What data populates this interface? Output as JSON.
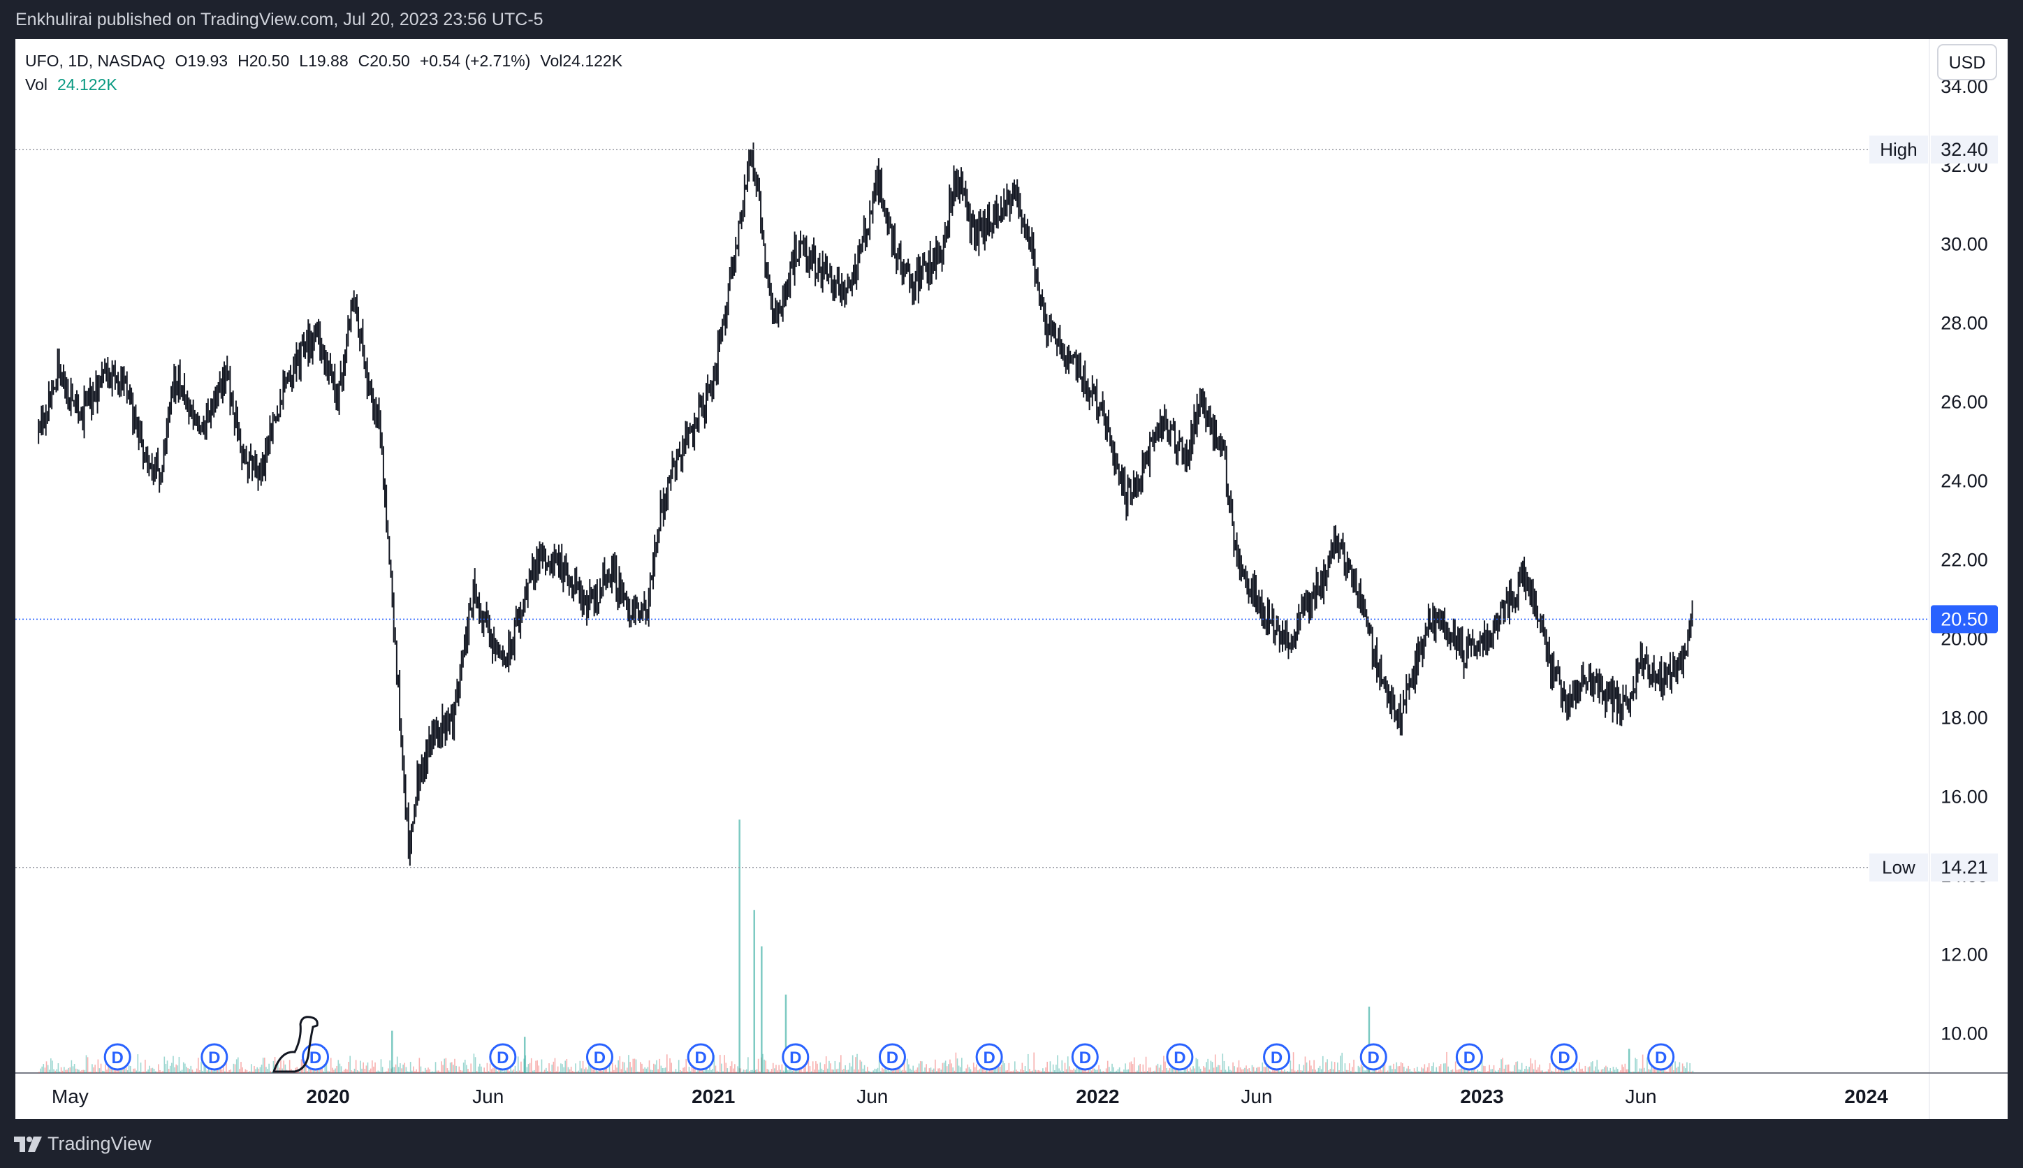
{
  "publish_info": "Enkhulirai published on TradingView.com, Jul 20, 2023 23:56 UTC-5",
  "legend": {
    "symbol": "UFO, 1D, NASDAQ",
    "open": "O19.93",
    "high": "H20.50",
    "low": "L19.88",
    "close": "C20.50",
    "change": "+0.54 (+2.71%)",
    "volume": "Vol24.122K",
    "vol_label": "Vol",
    "vol_value": "24.122K"
  },
  "currency": "USD",
  "brand": "TradingView",
  "colors": {
    "candle": "#131722",
    "accent": "#2962ff",
    "vol_up": "#26a69a",
    "vol_down": "#ef5350",
    "dividend": "#2962ff"
  },
  "chart_data": {
    "type": "candlestick",
    "interval": "1D",
    "ylim": [
      9.0,
      35.2
    ],
    "y_ticks": [
      "34.00",
      "32.00",
      "30.00",
      "28.00",
      "26.00",
      "24.00",
      "22.00",
      "20.00",
      "18.00",
      "16.00",
      "14.00",
      "12.00",
      "10.00"
    ],
    "x_ticks": [
      {
        "date": "2019-05-01",
        "label": "May",
        "bold": false
      },
      {
        "date": "2020-01-01",
        "label": "2020",
        "bold": true
      },
      {
        "date": "2020-06-01",
        "label": "Jun",
        "bold": false
      },
      {
        "date": "2021-01-01",
        "label": "2021",
        "bold": true
      },
      {
        "date": "2021-06-01",
        "label": "Jun",
        "bold": false
      },
      {
        "date": "2022-01-01",
        "label": "2022",
        "bold": true
      },
      {
        "date": "2022-06-01",
        "label": "Jun",
        "bold": false
      },
      {
        "date": "2023-01-01",
        "label": "2023",
        "bold": true
      },
      {
        "date": "2023-06-01",
        "label": "Jun",
        "bold": false
      },
      {
        "date": "2024-01-01",
        "label": "2024",
        "bold": true
      }
    ],
    "x_range": [
      "2019-03-10",
      "2024-03-01"
    ],
    "high_marker": {
      "label": "High",
      "value": 32.4
    },
    "low_marker": {
      "label": "Low",
      "value": 14.21
    },
    "last_price": {
      "value": 20.5,
      "label": "20.50"
    },
    "close_path": [
      [
        "2019-04-01",
        25.1
      ],
      [
        "2019-04-20",
        26.8
      ],
      [
        "2019-05-10",
        25.6
      ],
      [
        "2019-06-01",
        26.6
      ],
      [
        "2019-06-20",
        26.8
      ],
      [
        "2019-07-10",
        24.6
      ],
      [
        "2019-07-25",
        24.2
      ],
      [
        "2019-08-10",
        26.7
      ],
      [
        "2019-09-01",
        25.2
      ],
      [
        "2019-09-25",
        26.8
      ],
      [
        "2019-10-15",
        24.4
      ],
      [
        "2019-10-30",
        24.3
      ],
      [
        "2019-11-20",
        26.5
      ],
      [
        "2019-12-20",
        27.8
      ],
      [
        "2020-01-10",
        26.0
      ],
      [
        "2020-01-25",
        28.7
      ],
      [
        "2020-02-10",
        26.2
      ],
      [
        "2020-02-20",
        25.2
      ],
      [
        "2020-02-26",
        23.0
      ],
      [
        "2020-03-05",
        19.8
      ],
      [
        "2020-03-12",
        17.0
      ],
      [
        "2020-03-18",
        14.5
      ],
      [
        "2020-03-25",
        16.3
      ],
      [
        "2020-04-10",
        17.6
      ],
      [
        "2020-04-28",
        18.0
      ],
      [
        "2020-05-10",
        19.8
      ],
      [
        "2020-05-18",
        21.3
      ],
      [
        "2020-06-05",
        19.8
      ],
      [
        "2020-06-20",
        19.5
      ],
      [
        "2020-07-10",
        21.5
      ],
      [
        "2020-07-25",
        22.2
      ],
      [
        "2020-08-15",
        21.5
      ],
      [
        "2020-09-05",
        20.8
      ],
      [
        "2020-09-25",
        21.8
      ],
      [
        "2020-10-15",
        20.7
      ],
      [
        "2020-10-30",
        20.6
      ],
      [
        "2020-11-10",
        23.0
      ],
      [
        "2020-11-25",
        24.5
      ],
      [
        "2020-12-15",
        25.5
      ],
      [
        "2021-01-01",
        26.5
      ],
      [
        "2021-01-10",
        28.0
      ],
      [
        "2021-01-28",
        31.0
      ],
      [
        "2021-02-05",
        32.4
      ],
      [
        "2021-02-12",
        31.2
      ],
      [
        "2021-02-25",
        28.5
      ],
      [
        "2021-03-05",
        28.3
      ],
      [
        "2021-03-20",
        29.8
      ],
      [
        "2021-04-10",
        29.5
      ],
      [
        "2021-05-10",
        28.8
      ],
      [
        "2021-05-28",
        30.5
      ],
      [
        "2021-06-05",
        31.8
      ],
      [
        "2021-06-20",
        30.0
      ],
      [
        "2021-07-10",
        29.0
      ],
      [
        "2021-08-05",
        29.8
      ],
      [
        "2021-08-20",
        31.8
      ],
      [
        "2021-09-05",
        30.2
      ],
      [
        "2021-09-25",
        30.6
      ],
      [
        "2021-10-15",
        31.2
      ],
      [
        "2021-10-28",
        30.3
      ],
      [
        "2021-11-10",
        28.0
      ],
      [
        "2021-11-25",
        27.5
      ],
      [
        "2021-12-10",
        27.0
      ],
      [
        "2021-12-25",
        26.3
      ],
      [
        "2022-01-10",
        25.5
      ],
      [
        "2022-01-28",
        23.5
      ],
      [
        "2022-02-15",
        24.5
      ],
      [
        "2022-03-05",
        25.5
      ],
      [
        "2022-03-25",
        24.5
      ],
      [
        "2022-04-08",
        26.0
      ],
      [
        "2022-04-28",
        25.0
      ],
      [
        "2022-05-12",
        22.3
      ],
      [
        "2022-05-28",
        21.2
      ],
      [
        "2022-06-15",
        20.5
      ],
      [
        "2022-06-30",
        19.8
      ],
      [
        "2022-07-20",
        20.9
      ],
      [
        "2022-08-05",
        21.6
      ],
      [
        "2022-08-16",
        22.6
      ],
      [
        "2022-09-05",
        21.2
      ],
      [
        "2022-09-28",
        19.0
      ],
      [
        "2022-10-12",
        18.0
      ],
      [
        "2022-10-25",
        18.8
      ],
      [
        "2022-11-10",
        20.4
      ],
      [
        "2022-11-25",
        20.5
      ],
      [
        "2022-12-15",
        19.6
      ],
      [
        "2023-01-05",
        20.0
      ],
      [
        "2023-01-25",
        20.9
      ],
      [
        "2023-02-10",
        21.6
      ],
      [
        "2023-02-25",
        20.6
      ],
      [
        "2023-03-10",
        19.0
      ],
      [
        "2023-03-25",
        18.4
      ],
      [
        "2023-04-10",
        19.0
      ],
      [
        "2023-04-30",
        18.6
      ],
      [
        "2023-05-15",
        18.2
      ],
      [
        "2023-06-01",
        19.4
      ],
      [
        "2023-06-15",
        19.2
      ],
      [
        "2023-06-30",
        19.0
      ],
      [
        "2023-07-10",
        19.6
      ],
      [
        "2023-07-20",
        20.5
      ]
    ],
    "volume_spikes": [
      {
        "date": "2021-01-25",
        "value": 4.2
      },
      {
        "date": "2021-02-08",
        "value": 2.7
      },
      {
        "date": "2021-02-15",
        "value": 2.1
      },
      {
        "date": "2021-03-10",
        "value": 1.3
      },
      {
        "date": "2020-03-01",
        "value": 0.7
      },
      {
        "date": "2022-09-15",
        "value": 1.1
      },
      {
        "date": "2020-07-05",
        "value": 0.6
      },
      {
        "date": "2023-05-20",
        "value": 0.4
      }
    ],
    "dividends": [
      {
        "date": "2019-06-15",
        "label": "D"
      },
      {
        "date": "2019-09-15",
        "label": "D"
      },
      {
        "date": "2019-12-20",
        "label": "D"
      },
      {
        "date": "2020-06-15",
        "label": "D"
      },
      {
        "date": "2020-09-15",
        "label": "D"
      },
      {
        "date": "2020-12-20",
        "label": "D"
      },
      {
        "date": "2021-03-20",
        "label": "D"
      },
      {
        "date": "2021-06-20",
        "label": "D"
      },
      {
        "date": "2021-09-20",
        "label": "D"
      },
      {
        "date": "2021-12-20",
        "label": "D"
      },
      {
        "date": "2022-03-20",
        "label": "D"
      },
      {
        "date": "2022-06-20",
        "label": "D"
      },
      {
        "date": "2022-09-20",
        "label": "D"
      },
      {
        "date": "2022-12-20",
        "label": "D"
      },
      {
        "date": "2023-03-20",
        "label": "D"
      },
      {
        "date": "2023-06-20",
        "label": "D"
      }
    ]
  }
}
